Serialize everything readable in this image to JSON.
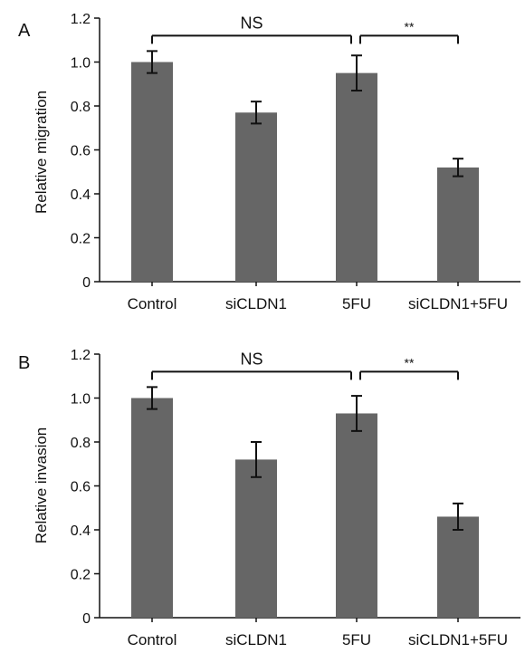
{
  "colors": {
    "bar": "#666666",
    "axis": "#111111",
    "error": "#111111"
  },
  "chart_data": [
    {
      "type": "bar",
      "panel_label": "A",
      "ylabel": "Relative migration",
      "ylim": [
        0,
        1.2
      ],
      "yticks": [
        0,
        0.2,
        0.4,
        0.6,
        0.8,
        1.0,
        1.2
      ],
      "ytick_labels": [
        "0",
        "0.2",
        "0.4",
        "0.6",
        "0.8",
        "1.0",
        "1.2"
      ],
      "categories": [
        "Control",
        "siCLDN1",
        "5FU",
        "siCLDN1+5FU"
      ],
      "values": [
        1.0,
        0.77,
        0.95,
        0.52
      ],
      "errors": [
        0.05,
        0.05,
        0.08,
        0.04
      ],
      "annotations": [
        {
          "label": "NS",
          "from": 0,
          "to": 2,
          "y": 1.12
        },
        {
          "label": "**",
          "from": 2,
          "to": 3,
          "y": 1.12
        }
      ]
    },
    {
      "type": "bar",
      "panel_label": "B",
      "ylabel": "Relative invasion",
      "ylim": [
        0,
        1.2
      ],
      "yticks": [
        0,
        0.2,
        0.4,
        0.6,
        0.8,
        1.0,
        1.2
      ],
      "ytick_labels": [
        "0",
        "0.2",
        "0.4",
        "0.6",
        "0.8",
        "1.0",
        "1.2"
      ],
      "categories": [
        "Control",
        "siCLDN1",
        "5FU",
        "siCLDN1+5FU"
      ],
      "values": [
        1.0,
        0.72,
        0.93,
        0.46
      ],
      "errors": [
        0.05,
        0.08,
        0.08,
        0.06
      ],
      "annotations": [
        {
          "label": "NS",
          "from": 0,
          "to": 2,
          "y": 1.12
        },
        {
          "label": "**",
          "from": 2,
          "to": 3,
          "y": 1.12
        }
      ]
    }
  ]
}
